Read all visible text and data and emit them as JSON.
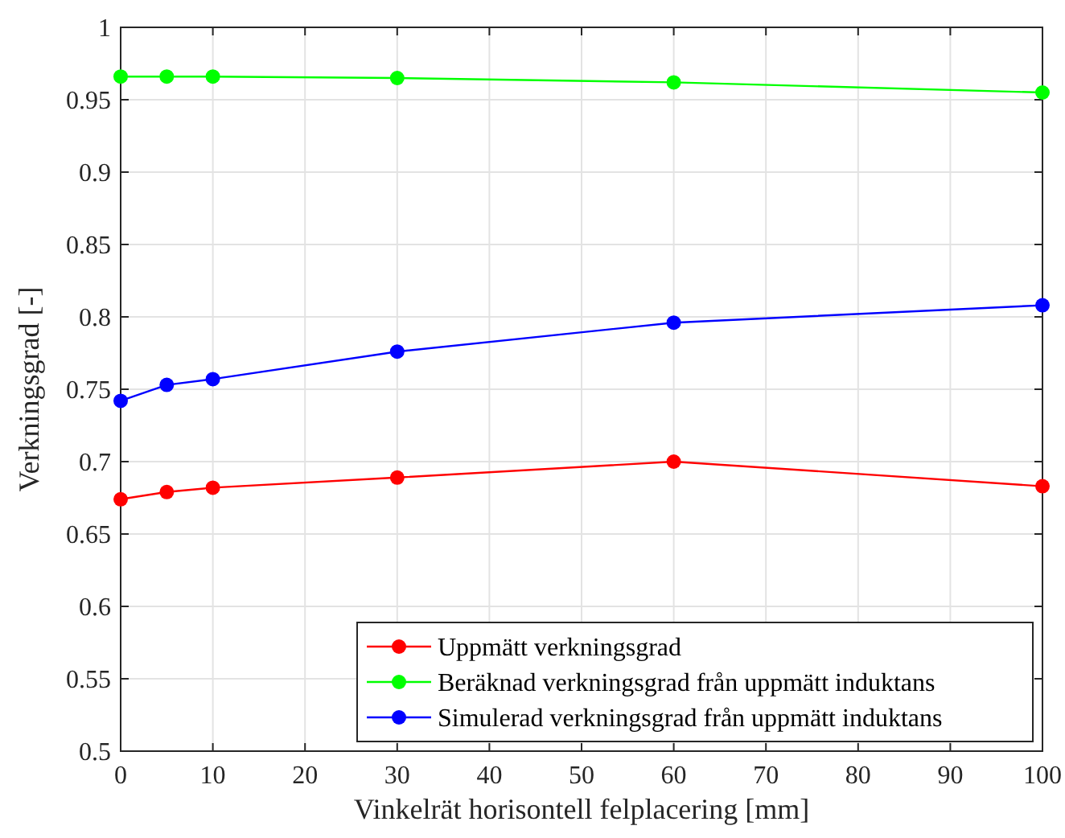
{
  "chart_data": {
    "type": "line",
    "xlabel": "Vinkelrät horisontell felplacering [mm]",
    "ylabel": "Verkningsgrad [-]",
    "x": [
      0,
      5,
      10,
      30,
      60,
      100
    ],
    "series": [
      {
        "name": "Uppmätt verkningsgrad",
        "color": "#ff0000",
        "values": [
          0.674,
          0.679,
          0.682,
          0.689,
          0.7,
          0.683
        ]
      },
      {
        "name": "Beräknad verkningsgrad från uppmätt induktans",
        "color": "#00ff00",
        "values": [
          0.966,
          0.966,
          0.966,
          0.965,
          0.962,
          0.955
        ]
      },
      {
        "name": "Simulerad verkningsgrad från uppmätt induktans",
        "color": "#0000ff",
        "values": [
          0.742,
          0.753,
          0.757,
          0.776,
          0.796,
          0.808
        ]
      }
    ],
    "xlim": [
      0,
      100
    ],
    "xticks": [
      0,
      10,
      20,
      30,
      40,
      50,
      60,
      70,
      80,
      90,
      100
    ],
    "ylim": [
      0.5,
      1
    ],
    "yticks": [
      0.5,
      0.55,
      0.6,
      0.65,
      0.7,
      0.75,
      0.8,
      0.85,
      0.9,
      0.95,
      1
    ],
    "grid": true,
    "legend": "bottom right",
    "marker": "circle",
    "line_style": "solid"
  }
}
